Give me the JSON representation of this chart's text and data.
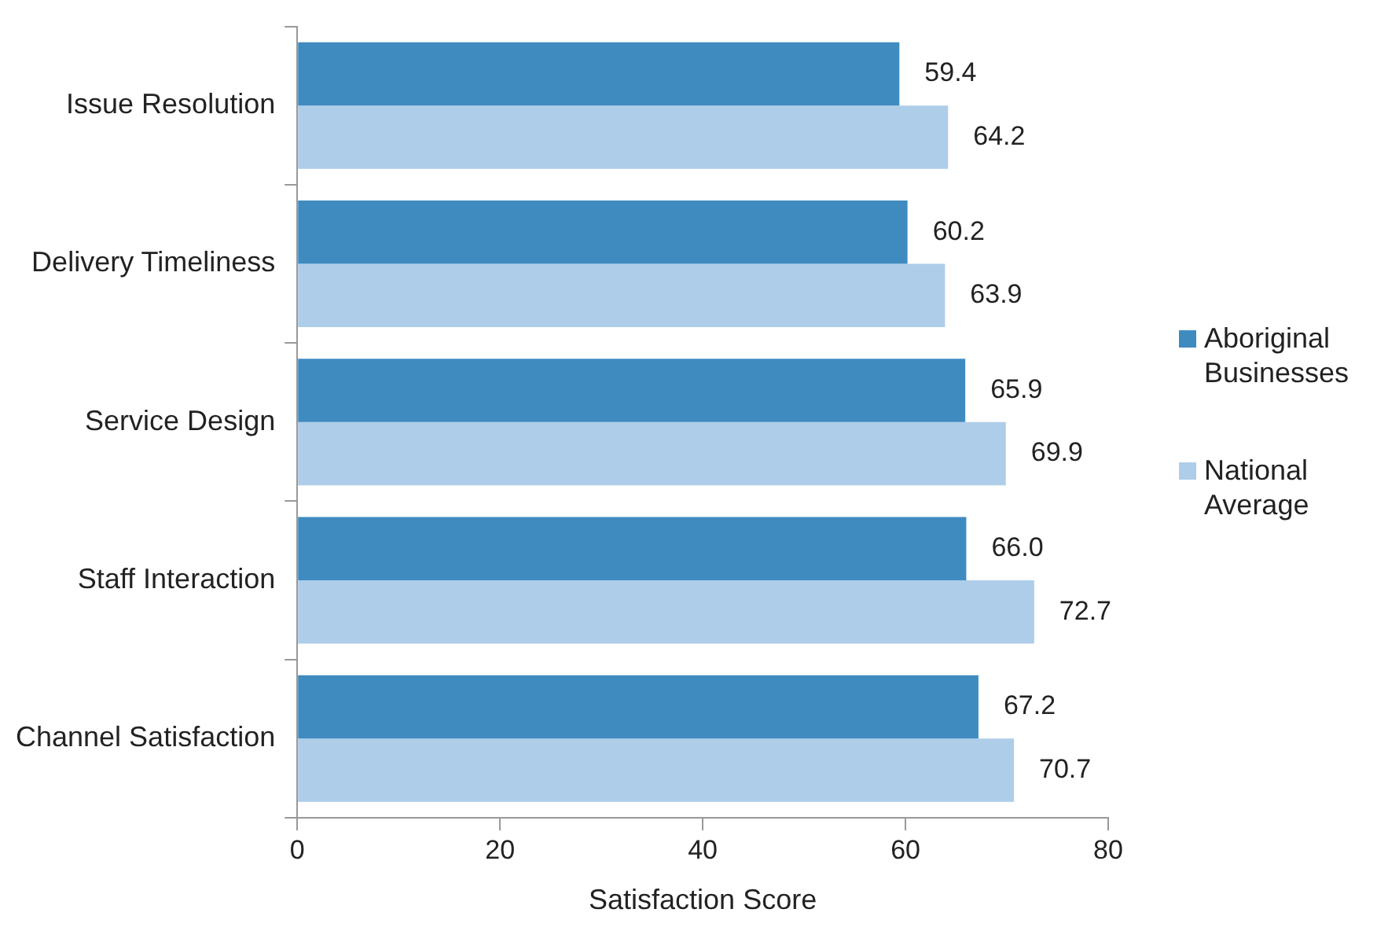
{
  "chart_data": {
    "type": "bar",
    "orientation": "horizontal",
    "xlabel": "Satisfaction Score",
    "categories": [
      "Issue Resolution",
      "Delivery Timeliness",
      "Service Design",
      "Staff Interaction",
      "Channel Satisfaction"
    ],
    "series": [
      {
        "name": "Aboriginal Businesses",
        "color": "#3f8bc0",
        "values": [
          59.4,
          60.2,
          65.9,
          66.0,
          67.2
        ],
        "value_labels": [
          "59.4",
          "60.2",
          "65.9",
          "66.0",
          "67.2"
        ]
      },
      {
        "name": "National Average",
        "color": "#aecde8",
        "values": [
          64.2,
          63.9,
          69.9,
          72.7,
          70.7
        ],
        "value_labels": [
          "64.2",
          "63.9",
          "69.9",
          "72.7",
          "70.7"
        ]
      }
    ],
    "xlim": [
      0,
      80
    ],
    "xticks": [
      0,
      20,
      40,
      60,
      80
    ],
    "grid": false,
    "legend": "right"
  }
}
